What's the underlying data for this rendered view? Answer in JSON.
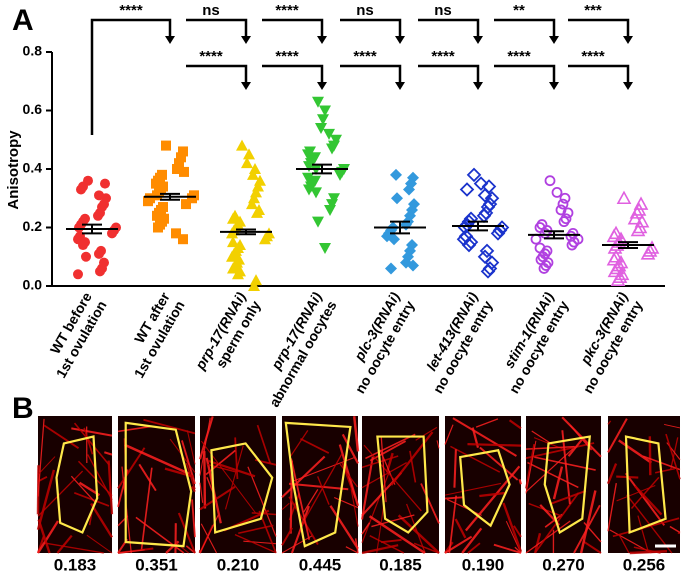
{
  "panel_a_label": "A",
  "chart_data": {
    "type": "dotplot",
    "ylabel": "Anisotropy",
    "ylim": [
      0,
      0.8
    ],
    "yticks": [
      {
        "value": 0,
        "label": "0.0"
      },
      0.2,
      0.4,
      0.6,
      0.8
    ],
    "categories": [
      [
        "WT before",
        "1st ovulation"
      ],
      [
        "WT after",
        "1st ovulation"
      ],
      [
        "prp-17(RNAi)",
        "sperm only"
      ],
      [
        "prp-17(RNAi)",
        "abnormal oocytes"
      ],
      [
        "plc-3(RNAi)",
        "no oocyte entry"
      ],
      [
        "let-413(RNAi)",
        "no oocyte entry"
      ],
      [
        "stim-1(RNAi)",
        "no oocyte entry"
      ],
      [
        "pkc-3(RNAi)",
        "no oocyte entry"
      ]
    ],
    "groups": [
      {
        "color": "#f03030",
        "marker": "circle",
        "mean": 0.195,
        "sem": 0.015,
        "values": [
          0.36,
          0.35,
          0.34,
          0.33,
          0.31,
          0.3,
          0.28,
          0.27,
          0.25,
          0.24,
          0.23,
          0.22,
          0.21,
          0.2,
          0.2,
          0.19,
          0.18,
          0.17,
          0.16,
          0.15,
          0.14,
          0.12,
          0.11,
          0.1,
          0.08,
          0.06,
          0.05,
          0.04
        ]
      },
      {
        "color": "#ff8c00",
        "marker": "square",
        "mean": 0.305,
        "sem": 0.01,
        "values": [
          0.48,
          0.46,
          0.44,
          0.42,
          0.4,
          0.39,
          0.38,
          0.37,
          0.36,
          0.35,
          0.34,
          0.33,
          0.32,
          0.31,
          0.31,
          0.3,
          0.3,
          0.29,
          0.28,
          0.27,
          0.26,
          0.25,
          0.24,
          0.23,
          0.22,
          0.21,
          0.2,
          0.18,
          0.16
        ]
      },
      {
        "color": "#f2d000",
        "marker": "triangle",
        "mean": 0.185,
        "sem": 0.008,
        "values": [
          0.48,
          0.45,
          0.42,
          0.4,
          0.38,
          0.36,
          0.34,
          0.32,
          0.3,
          0.28,
          0.26,
          0.25,
          0.24,
          0.23,
          0.22,
          0.21,
          0.2,
          0.19,
          0.18,
          0.18,
          0.17,
          0.16,
          0.15,
          0.14,
          0.13,
          0.12,
          0.11,
          0.1,
          0.09,
          0.08,
          0.07,
          0.06,
          0.05,
          0.04,
          0.02,
          0.0
        ]
      },
      {
        "color": "#33c633",
        "marker": "triangle-down",
        "mean": 0.4,
        "sem": 0.015,
        "values": [
          0.63,
          0.6,
          0.57,
          0.54,
          0.52,
          0.5,
          0.48,
          0.47,
          0.46,
          0.45,
          0.44,
          0.43,
          0.42,
          0.41,
          0.4,
          0.4,
          0.39,
          0.38,
          0.37,
          0.36,
          0.35,
          0.34,
          0.33,
          0.32,
          0.3,
          0.28,
          0.26,
          0.22,
          0.13
        ]
      },
      {
        "color": "#3399dd",
        "marker": "diamond",
        "mean": 0.2,
        "sem": 0.02,
        "values": [
          0.38,
          0.37,
          0.35,
          0.33,
          0.3,
          0.28,
          0.26,
          0.24,
          0.22,
          0.21,
          0.2,
          0.19,
          0.18,
          0.17,
          0.16,
          0.14,
          0.12,
          0.1,
          0.08,
          0.07,
          0.06
        ]
      },
      {
        "color": "#1a33cc",
        "marker": "diamond-open",
        "mean": 0.205,
        "sem": 0.015,
        "values": [
          0.38,
          0.35,
          0.34,
          0.33,
          0.31,
          0.3,
          0.28,
          0.27,
          0.25,
          0.24,
          0.23,
          0.22,
          0.21,
          0.2,
          0.2,
          0.19,
          0.18,
          0.17,
          0.16,
          0.15,
          0.14,
          0.12,
          0.1,
          0.08,
          0.06,
          0.05
        ]
      },
      {
        "color": "#b040e0",
        "marker": "circle-open",
        "mean": 0.175,
        "sem": 0.012,
        "values": [
          0.36,
          0.32,
          0.3,
          0.28,
          0.26,
          0.25,
          0.23,
          0.22,
          0.21,
          0.2,
          0.19,
          0.18,
          0.18,
          0.17,
          0.16,
          0.16,
          0.15,
          0.14,
          0.13,
          0.12,
          0.11,
          0.1,
          0.09,
          0.08,
          0.07,
          0.06
        ]
      },
      {
        "color": "#e060e0",
        "marker": "triangle-open",
        "mean": 0.14,
        "sem": 0.01,
        "values": [
          0.3,
          0.28,
          0.26,
          0.25,
          0.23,
          0.22,
          0.2,
          0.19,
          0.18,
          0.17,
          0.16,
          0.15,
          0.14,
          0.13,
          0.13,
          0.12,
          0.11,
          0.1,
          0.09,
          0.08,
          0.07,
          0.06,
          0.05,
          0.04,
          0.03,
          0.02
        ]
      }
    ],
    "significance": [
      {
        "row": 1,
        "target": 1,
        "label": "****"
      },
      {
        "row": 1,
        "target": 2,
        "label": "ns"
      },
      {
        "row": 1,
        "target": 3,
        "label": "****"
      },
      {
        "row": 1,
        "target": 4,
        "label": "ns"
      },
      {
        "row": 1,
        "target": 5,
        "label": "ns"
      },
      {
        "row": 1,
        "target": 6,
        "label": "**"
      },
      {
        "row": 1,
        "target": 7,
        "label": "***"
      },
      {
        "row": 2,
        "target": 2,
        "label": "****"
      },
      {
        "row": 2,
        "target": 3,
        "label": "****"
      },
      {
        "row": 2,
        "target": 4,
        "label": "****"
      },
      {
        "row": 2,
        "target": 5,
        "label": "****"
      },
      {
        "row": 2,
        "target": 6,
        "label": "****"
      },
      {
        "row": 2,
        "target": 7,
        "label": "****"
      }
    ]
  },
  "panel_b": {
    "label": "B",
    "values": [
      "0.183",
      "0.351",
      "0.210",
      "0.445",
      "0.185",
      "0.190",
      "0.270",
      "0.256"
    ]
  }
}
